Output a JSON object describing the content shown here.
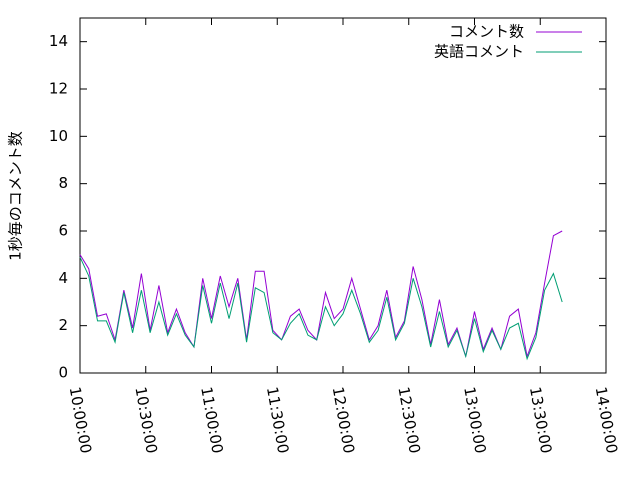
{
  "chart_data": {
    "type": "line",
    "ylabel": "1秒毎のコメント数",
    "x": [
      "10:00:00",
      "10:04:00",
      "10:08:00",
      "10:12:00",
      "10:16:00",
      "10:20:00",
      "10:24:00",
      "10:28:00",
      "10:32:00",
      "10:36:00",
      "10:40:00",
      "10:44:00",
      "10:48:00",
      "10:52:00",
      "10:56:00",
      "11:00:00",
      "11:04:00",
      "11:08:00",
      "11:12:00",
      "11:16:00",
      "11:20:00",
      "11:24:00",
      "11:28:00",
      "11:32:00",
      "11:36:00",
      "11:40:00",
      "11:44:00",
      "11:48:00",
      "11:52:00",
      "11:56:00",
      "12:00:00",
      "12:04:00",
      "12:08:00",
      "12:12:00",
      "12:16:00",
      "12:20:00",
      "12:24:00",
      "12:28:00",
      "12:32:00",
      "12:36:00",
      "12:40:00",
      "12:44:00",
      "12:48:00",
      "12:52:00",
      "12:56:00",
      "13:00:00",
      "13:04:00",
      "13:08:00",
      "13:12:00",
      "13:16:00",
      "13:20:00",
      "13:24:00",
      "13:28:00",
      "13:32:00",
      "13:36:00",
      "13:40:00"
    ],
    "series": [
      {
        "name": "コメント数",
        "color": "#9400d3",
        "values": [
          5.0,
          4.4,
          2.4,
          2.5,
          1.4,
          3.5,
          1.9,
          4.2,
          1.8,
          3.7,
          1.7,
          2.7,
          1.7,
          1.1,
          4.0,
          2.3,
          4.1,
          2.8,
          4.0,
          1.4,
          4.3,
          4.3,
          1.8,
          1.4,
          2.4,
          2.7,
          1.8,
          1.4,
          3.4,
          2.3,
          2.7,
          4.0,
          2.7,
          1.4,
          2.0,
          3.5,
          1.5,
          2.2,
          4.5,
          3.1,
          1.2,
          3.1,
          1.2,
          1.9,
          0.7,
          2.6,
          1.0,
          1.9,
          1.0,
          2.4,
          2.7,
          0.7,
          1.7,
          3.8,
          5.8,
          6.0
        ]
      },
      {
        "name": "英語コメント",
        "color": "#009e73",
        "values": [
          4.9,
          4.1,
          2.2,
          2.2,
          1.3,
          3.4,
          1.7,
          3.5,
          1.7,
          3.0,
          1.6,
          2.5,
          1.6,
          1.1,
          3.7,
          2.1,
          3.8,
          2.3,
          3.8,
          1.3,
          3.6,
          3.4,
          1.7,
          1.4,
          2.1,
          2.5,
          1.6,
          1.4,
          2.8,
          2.0,
          2.5,
          3.5,
          2.5,
          1.3,
          1.8,
          3.2,
          1.4,
          2.1,
          4.0,
          2.8,
          1.1,
          2.6,
          1.1,
          1.8,
          0.7,
          2.3,
          0.9,
          1.8,
          1.0,
          1.9,
          2.1,
          0.6,
          1.5,
          3.5,
          4.2,
          3.0
        ]
      }
    ],
    "xlim": [
      "10:00:00",
      "14:00:00"
    ],
    "xticks": [
      "10:00:00",
      "10:30:00",
      "11:00:00",
      "11:30:00",
      "12:00:00",
      "12:30:00",
      "13:00:00",
      "13:30:00",
      "14:00:00"
    ],
    "ylim": [
      0,
      15
    ],
    "yticks": [
      0,
      2,
      4,
      6,
      8,
      10,
      12,
      14
    ],
    "legend": "top-right"
  }
}
